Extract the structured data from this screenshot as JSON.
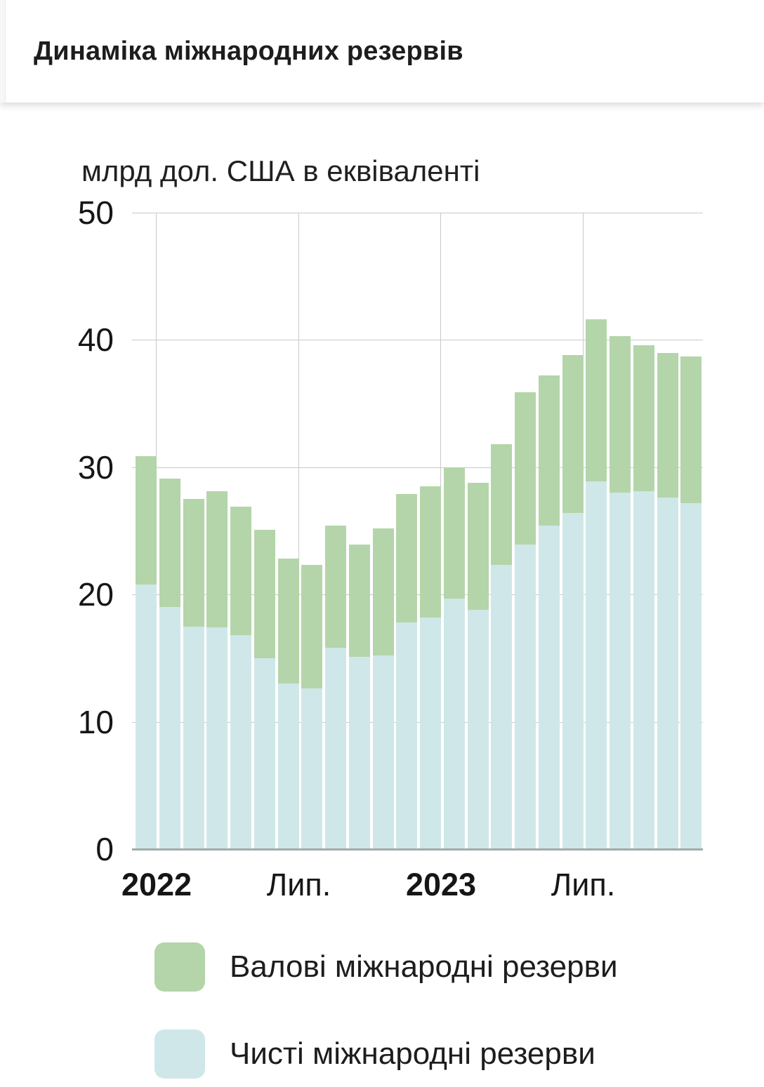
{
  "header": {
    "title": "Динаміка міжнародних резервів"
  },
  "chart_data": {
    "type": "bar",
    "stacked": true,
    "title": "Динаміка міжнародних резервів",
    "ylabel": "млрд дол. США в еквіваленті",
    "xlabel": "",
    "ylim": [
      0,
      50
    ],
    "y_ticks": [
      0,
      10,
      20,
      30,
      40,
      50
    ],
    "grid": true,
    "legend_position": "bottom",
    "x_ticks": [
      {
        "label": "2022",
        "bold": true,
        "after_bar": 1
      },
      {
        "label": "Лип.",
        "bold": false,
        "after_bar": 7
      },
      {
        "label": "2023",
        "bold": true,
        "after_bar": 13
      },
      {
        "label": "Лип.",
        "bold": false,
        "after_bar": 19
      }
    ],
    "series": [
      {
        "name": "Валові міжнародні резерви",
        "color": "#b4d5a9",
        "values": [
          30.9,
          29.1,
          27.5,
          28.1,
          26.9,
          25.1,
          22.8,
          22.3,
          25.4,
          23.9,
          25.2,
          27.9,
          28.5,
          30.0,
          28.8,
          31.8,
          35.9,
          37.2,
          38.8,
          41.6,
          40.3,
          39.6,
          39.0,
          38.7
        ]
      },
      {
        "name": "Чисті міжнародні резерви",
        "color": "#cfe7e9",
        "values": [
          20.8,
          19.0,
          17.5,
          17.4,
          16.8,
          15.0,
          13.0,
          12.6,
          15.8,
          15.1,
          15.2,
          17.8,
          18.2,
          19.7,
          18.8,
          22.3,
          23.9,
          25.4,
          26.4,
          28.9,
          28.0,
          28.1,
          27.6,
          27.2
        ]
      }
    ]
  },
  "legend": {
    "items": [
      {
        "label": "Валові міжнародні резерви",
        "color": "#b4d5a9"
      },
      {
        "label": "Чисті міжнародні резерви",
        "color": "#cfe7e9"
      }
    ]
  }
}
